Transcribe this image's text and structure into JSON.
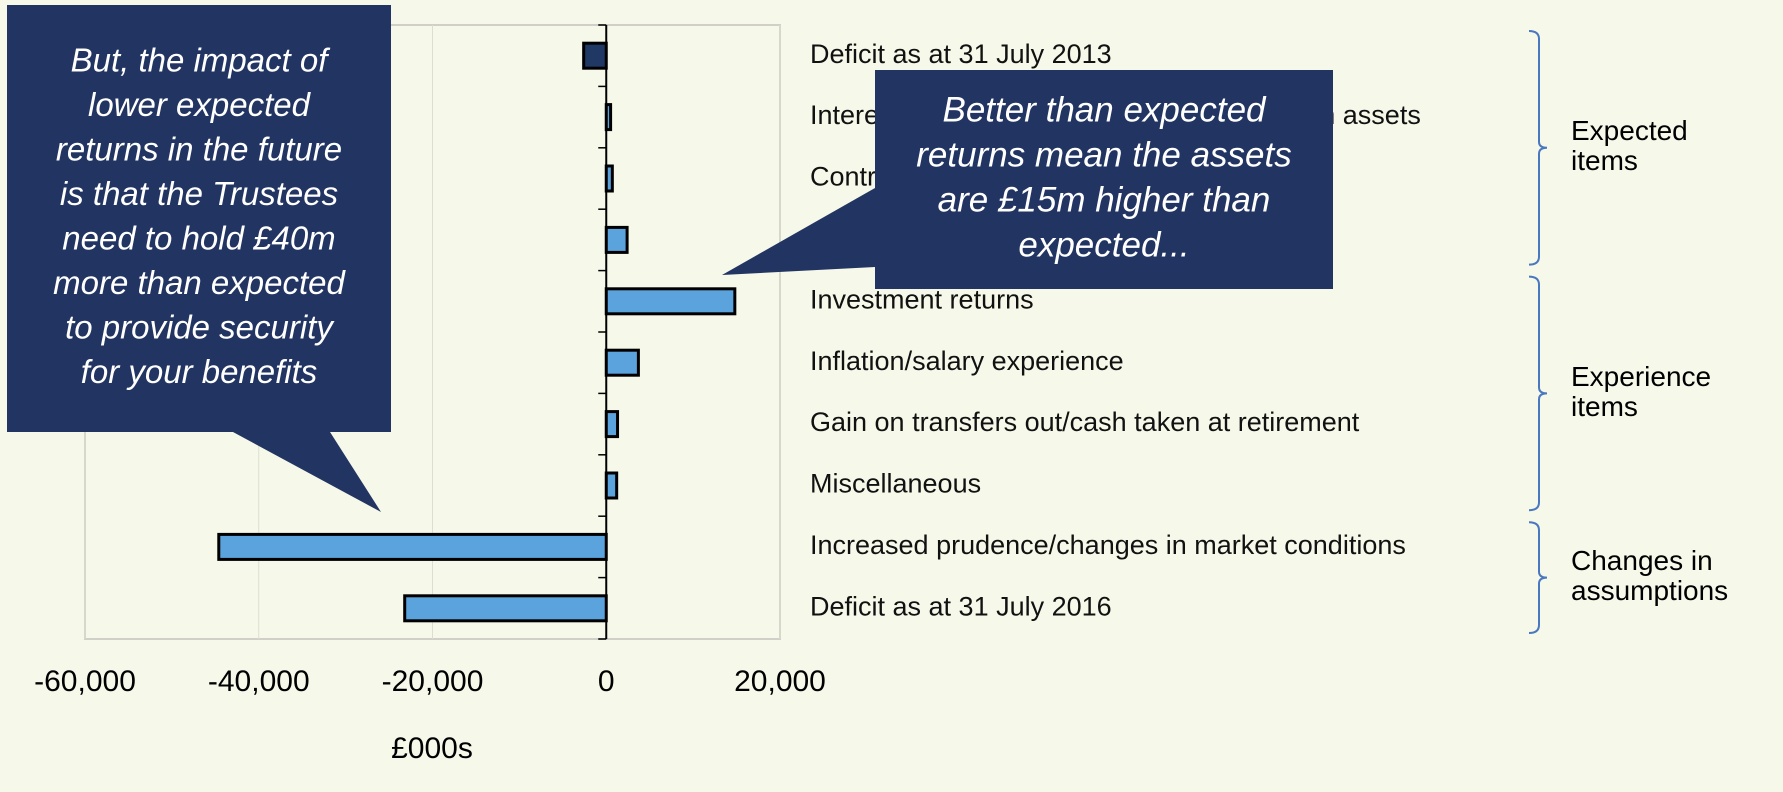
{
  "chart_data": {
    "type": "barh",
    "categories": [
      "Deficit as at 31 July 2013",
      "Interest on liabilities less expected return on assets",
      "Contributions paid less benefits accrual",
      null,
      "Investment returns",
      "Inflation/salary experience",
      "Gain on transfers out/cash taken at retirement",
      "Miscellaneous",
      "Increased prudence/changes in market conditions",
      "Deficit as at 31 July 2016"
    ],
    "values": [
      -2600,
      500,
      700,
      2400,
      14800,
      3700,
      1300,
      1200,
      -44600,
      -23200
    ],
    "colors": [
      "#1f3864",
      "#5ba3dc",
      "#5ba3dc",
      "#5ba3dc",
      "#5ba3dc",
      "#5ba3dc",
      "#5ba3dc",
      "#5ba3dc",
      "#5ba3dc",
      "#5ba3dc"
    ],
    "xlim": [
      -60000,
      20000
    ],
    "xticks": [
      {
        "value": -60000,
        "label": "-60,000"
      },
      {
        "value": -40000,
        "label": "-40,000"
      },
      {
        "value": -20000,
        "label": "-20,000"
      },
      0,
      {
        "value": 20000,
        "label": "20,000"
      }
    ],
    "x_label": "£000s",
    "grid": true,
    "groups": [
      {
        "lines": [
          "Expected",
          "items"
        ],
        "from": 0,
        "to": 3
      },
      {
        "lines": [
          "Experience",
          "items"
        ],
        "from": 4,
        "to": 7
      },
      {
        "lines": [
          "Changes in",
          "assumptions"
        ],
        "from": 8,
        "to": 9
      }
    ],
    "callouts": [
      {
        "lines": [
          "But, the impact of",
          "lower expected",
          "returns in the future",
          "is that the Trustees",
          "need to hold £40m",
          "more than expected",
          "to provide security",
          "for your benefits"
        ]
      },
      {
        "lines": [
          "Better than expected",
          "returns mean the assets",
          "are £15m higher than",
          "expected..."
        ]
      }
    ]
  }
}
